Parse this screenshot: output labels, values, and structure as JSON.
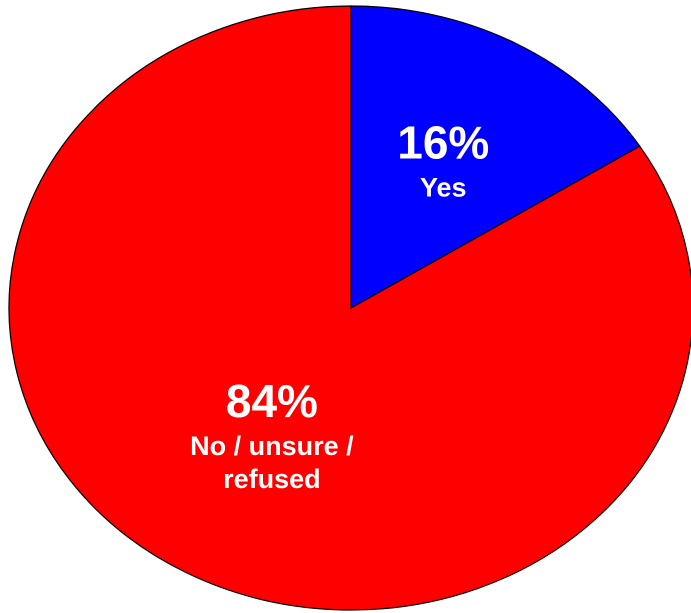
{
  "chart_data": {
    "type": "pie",
    "title": "",
    "legend": "none",
    "slices": [
      {
        "label_lines": [
          "Yes"
        ],
        "value": 16,
        "value_label": "16%",
        "color": "#0000FF"
      },
      {
        "label_lines": [
          "No / unsure /",
          "refused"
        ],
        "value": 84,
        "value_label": "84%",
        "color": "#FF0000"
      }
    ]
  }
}
